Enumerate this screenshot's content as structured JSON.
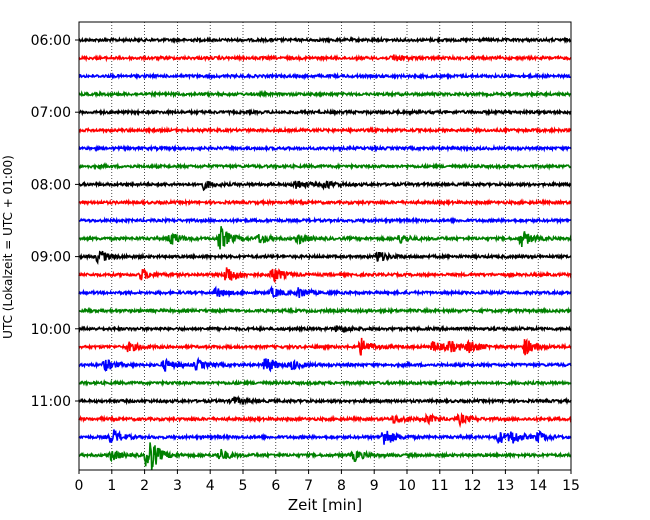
{
  "chart_data": {
    "type": "line",
    "title": "",
    "xlabel": "Zeit  [min]",
    "ylabel": "UTC (Lokalzeit = UTC + 01:00)",
    "xlim": [
      0,
      15
    ],
    "x_ticks": [
      "0",
      "1",
      "2",
      "3",
      "4",
      "5",
      "6",
      "7",
      "8",
      "9",
      "10",
      "11",
      "12",
      "13",
      "14",
      "15"
    ],
    "y_ticks": [
      "06:00",
      "07:00",
      "08:00",
      "09:00",
      "10:00",
      "11:00"
    ],
    "y_tick_rows": [
      0,
      4,
      8,
      12,
      16,
      20
    ],
    "grid": "vertical dotted",
    "trace_interval_min": 15,
    "trace_colors": [
      "#000000",
      "#ff0000",
      "#0000ff",
      "#008000"
    ],
    "traces": [
      {
        "start": "06:00",
        "color": "#000000",
        "events": []
      },
      {
        "start": "06:15",
        "color": "#ff0000",
        "events": [
          {
            "t": 9.6,
            "amp": 0.25
          }
        ]
      },
      {
        "start": "06:30",
        "color": "#0000ff",
        "events": []
      },
      {
        "start": "06:45",
        "color": "#008000",
        "events": []
      },
      {
        "start": "07:00",
        "color": "#000000",
        "events": []
      },
      {
        "start": "07:15",
        "color": "#ff0000",
        "events": []
      },
      {
        "start": "07:30",
        "color": "#0000ff",
        "events": []
      },
      {
        "start": "07:45",
        "color": "#008000",
        "events": []
      },
      {
        "start": "08:00",
        "color": "#000000",
        "events": [
          {
            "t": 3.8,
            "amp": 0.3
          },
          {
            "t": 6.6,
            "amp": 0.35
          },
          {
            "t": 7.5,
            "amp": 0.3
          }
        ]
      },
      {
        "start": "08:15",
        "color": "#ff0000",
        "events": []
      },
      {
        "start": "08:30",
        "color": "#0000ff",
        "events": []
      },
      {
        "start": "08:45",
        "color": "#008000",
        "events": [
          {
            "t": 2.8,
            "amp": 0.45
          },
          {
            "t": 4.3,
            "amp": 0.9
          },
          {
            "t": 5.5,
            "amp": 0.35
          },
          {
            "t": 6.7,
            "amp": 0.35
          },
          {
            "t": 9.8,
            "amp": 0.3
          },
          {
            "t": 13.5,
            "amp": 0.6
          }
        ]
      },
      {
        "start": "09:00",
        "color": "#000000",
        "events": [
          {
            "t": 0.6,
            "amp": 0.5
          },
          {
            "t": 9.1,
            "amp": 0.4
          }
        ]
      },
      {
        "start": "09:15",
        "color": "#ff0000",
        "events": [
          {
            "t": 1.9,
            "amp": 0.4
          },
          {
            "t": 4.5,
            "amp": 0.7
          },
          {
            "t": 5.9,
            "amp": 0.6
          }
        ]
      },
      {
        "start": "09:30",
        "color": "#0000ff",
        "events": [
          {
            "t": 4.2,
            "amp": 0.35
          },
          {
            "t": 5.9,
            "amp": 0.35
          },
          {
            "t": 6.7,
            "amp": 0.35
          }
        ]
      },
      {
        "start": "09:45",
        "color": "#008000",
        "events": []
      },
      {
        "start": "10:00",
        "color": "#000000",
        "events": [
          {
            "t": 7.9,
            "amp": 0.3
          }
        ]
      },
      {
        "start": "10:15",
        "color": "#ff0000",
        "events": [
          {
            "t": 1.5,
            "amp": 0.35
          },
          {
            "t": 8.6,
            "amp": 0.6
          },
          {
            "t": 10.8,
            "amp": 0.4
          },
          {
            "t": 11.3,
            "amp": 0.4
          },
          {
            "t": 11.9,
            "amp": 0.45
          },
          {
            "t": 13.6,
            "amp": 0.6
          }
        ]
      },
      {
        "start": "10:30",
        "color": "#0000ff",
        "events": [
          {
            "t": 0.8,
            "amp": 0.4
          },
          {
            "t": 2.6,
            "amp": 0.4
          },
          {
            "t": 3.6,
            "amp": 0.35
          },
          {
            "t": 5.7,
            "amp": 0.6
          },
          {
            "t": 6.5,
            "amp": 0.3
          }
        ]
      },
      {
        "start": "10:45",
        "color": "#008000",
        "events": []
      },
      {
        "start": "11:00",
        "color": "#000000",
        "events": [
          {
            "t": 4.7,
            "amp": 0.3
          }
        ]
      },
      {
        "start": "11:15",
        "color": "#ff0000",
        "events": [
          {
            "t": 9.6,
            "amp": 0.3
          },
          {
            "t": 10.6,
            "amp": 0.3
          },
          {
            "t": 11.6,
            "amp": 0.35
          }
        ]
      },
      {
        "start": "11:30",
        "color": "#0000ff",
        "events": [
          {
            "t": 1.0,
            "amp": 0.6
          },
          {
            "t": 9.3,
            "amp": 0.7
          },
          {
            "t": 12.8,
            "amp": 0.45
          },
          {
            "t": 13.2,
            "amp": 0.45
          },
          {
            "t": 14.0,
            "amp": 0.35
          }
        ]
      },
      {
        "start": "11:45",
        "color": "#008000",
        "events": [
          {
            "t": 1.0,
            "amp": 0.4
          },
          {
            "t": 2.1,
            "amp": 1.6
          },
          {
            "t": 4.3,
            "amp": 0.45
          },
          {
            "t": 8.4,
            "amp": 0.4
          }
        ]
      }
    ]
  }
}
